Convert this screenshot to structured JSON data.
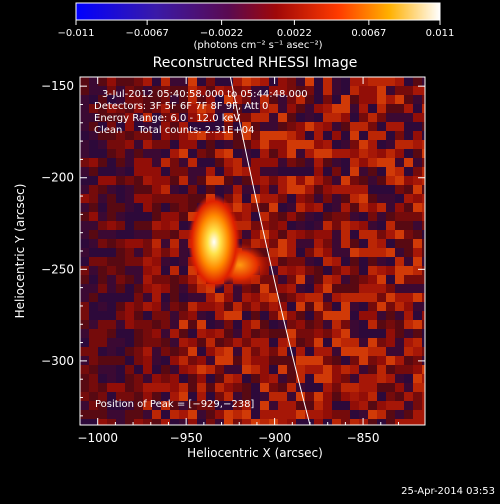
{
  "chart_data": {
    "type": "heatmap",
    "title": "Reconstructed RHESSI Image",
    "xlabel": "Heliocentric X (arcsec)",
    "ylabel": "Heliocentric Y (arcsec)",
    "xlim": [
      -1010,
      -815
    ],
    "ylim": [
      -335,
      -145
    ],
    "xticks": [
      -1000,
      -950,
      -900,
      -850
    ],
    "xtick_labels": [
      "−1000",
      "−950",
      "−900",
      "−850"
    ],
    "yticks": [
      -150,
      -200,
      -250,
      -300
    ],
    "ytick_labels": [
      "−150",
      "−200",
      "−250",
      "−300"
    ],
    "colorbar": {
      "min": -0.011,
      "max": 0.011,
      "ticks": [
        -0.011,
        -0.0067,
        -0.0022,
        0.0022,
        0.0067,
        0.011
      ],
      "tick_labels": [
        "−0.011",
        "−0.0067",
        "−0.0022",
        "0.0022",
        "0.0067",
        "0.011"
      ],
      "units": "(photons cm⁻² s⁻¹ asec⁻²)",
      "colormap": "blue-purple-red-orange-yellow-white"
    },
    "annotations": [
      "3-Jul-2012 05:40:58.000 to 05:44:48.000",
      "Detectors: 3F 5F 6F 7F 8F 9F, Att 0",
      "Energy Range: 6.0 - 12.0 keV",
      "Clean     Total counts: 2.31E+04"
    ],
    "peak": {
      "label": "Position of Peak = [−929,−238]",
      "x": -929,
      "y": -238
    },
    "limb_curve": {
      "points": [
        [
          -925,
          -145
        ],
        [
          -903,
          -250
        ],
        [
          -880,
          -335
        ]
      ]
    },
    "grid": false
  },
  "footer": {
    "timestamp": "25-Apr-2014 03:53"
  }
}
